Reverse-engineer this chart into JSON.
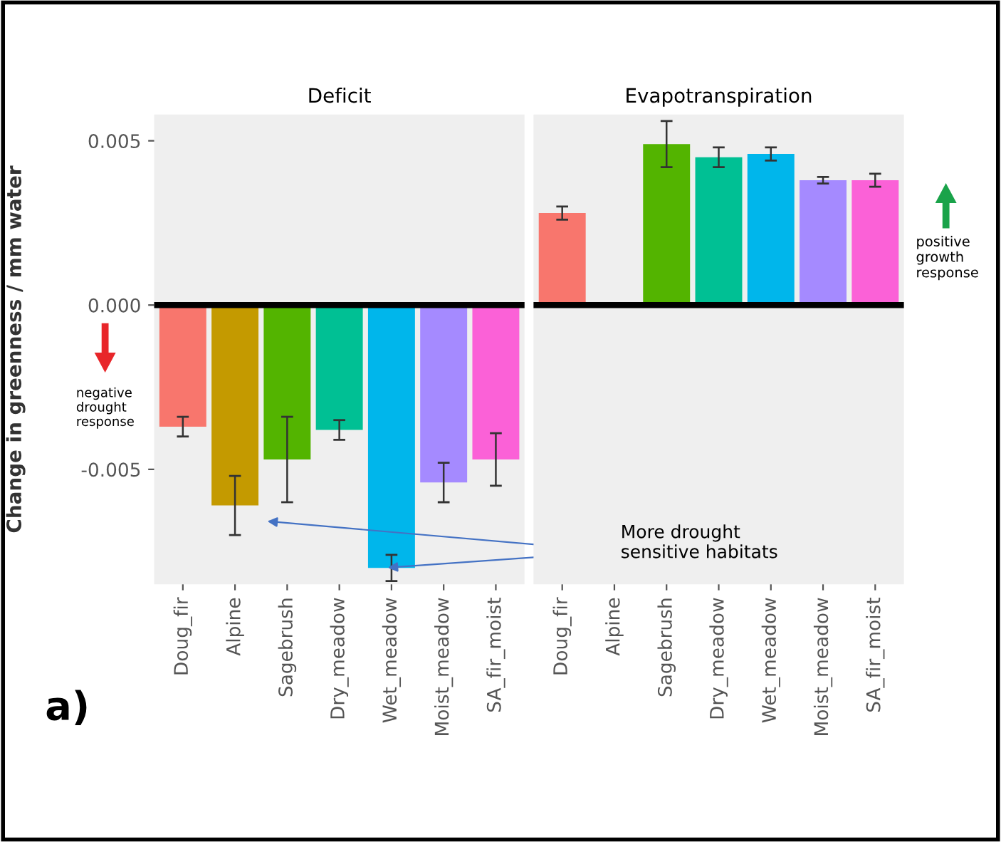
{
  "chart_data": [
    {
      "type": "bar",
      "title": "Deficit",
      "ylabel": "Change in greenness / mm water",
      "categories": [
        "Doug_fir",
        "Alpine",
        "Sagebrush",
        "Dry_meadow",
        "Wet_meadow",
        "Moist_meadow",
        "SA_fir_moist"
      ],
      "values": [
        -0.0037,
        -0.0061,
        -0.0047,
        -0.0038,
        -0.008,
        -0.0054,
        -0.0047
      ],
      "errors": [
        0.0003,
        0.0009,
        0.0013,
        0.0003,
        0.0004,
        0.0006,
        0.0008
      ],
      "colors": [
        "#f8766d",
        "#c49a00",
        "#53b400",
        "#00c094",
        "#00b6eb",
        "#a58aff",
        "#fb61d7"
      ],
      "ylim": [
        -0.0085,
        0.0058
      ],
      "yticks": [
        -0.005,
        {
          "value": 0,
          "label": "0.000"
        },
        0.005
      ],
      "ref_lines": [
        {
          "axis": "y",
          "value": 0,
          "label": null,
          "color": "#000000"
        }
      ],
      "annotations": [
        "negative drought response",
        "More drought sensitive habitats",
        "a)"
      ]
    },
    {
      "type": "bar",
      "title": "Evapotranspiration",
      "categories": [
        "Doug_fir",
        "Alpine",
        "Sagebrush",
        "Dry_meadow",
        "Wet_meadow",
        "Moist_meadow",
        "SA_fir_moist"
      ],
      "values": [
        0.0028,
        null,
        0.0049,
        0.0045,
        0.0046,
        0.0038,
        0.0038
      ],
      "errors": [
        0.0002,
        null,
        0.0007,
        0.0003,
        0.0002,
        0.0001,
        0.0002
      ],
      "colors": [
        "#f8766d",
        "#c49a00",
        "#53b400",
        "#00c094",
        "#00b6eb",
        "#a58aff",
        "#fb61d7"
      ],
      "ylim": [
        -0.0085,
        0.0058
      ],
      "tick_labels": "x",
      "ref_lines": [
        {
          "axis": "y",
          "value": 0,
          "label": null,
          "color": "#000000"
        }
      ],
      "annotations": [
        "positive growth response"
      ]
    }
  ]
}
